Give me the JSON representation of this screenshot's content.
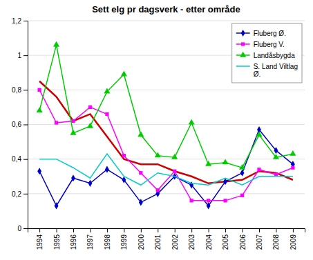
{
  "chart_data": {
    "type": "line",
    "title": "Sett elg pr dagsverk - etter område",
    "x": [
      1994,
      1995,
      1996,
      1997,
      1998,
      1999,
      2000,
      2001,
      2002,
      2003,
      2004,
      2005,
      2006,
      2007,
      2008,
      2009
    ],
    "series": [
      {
        "color": "#CC0000",
        "values": [
          0.85,
          0.76,
          0.62,
          0.66,
          0.53,
          0.4,
          0.37,
          0.37,
          0.33,
          0.3,
          0.26,
          0.27,
          0.28,
          0.33,
          0.32,
          0.28
        ]
      },
      {
        "name": "Fluberg Ø.",
        "color": "#0000CC",
        "marker": "diamond",
        "values": [
          0.33,
          0.13,
          0.29,
          0.26,
          0.34,
          0.28,
          0.15,
          0.2,
          0.3,
          0.25,
          0.13,
          0.27,
          0.32,
          0.57,
          0.45,
          0.37
        ]
      },
      {
        "name": "Fluberg V.",
        "color": "#FF00FF",
        "marker": "square",
        "values": [
          0.8,
          0.61,
          0.62,
          0.7,
          0.66,
          0.42,
          0.32,
          0.22,
          0.33,
          0.16,
          0.16,
          0.16,
          0.19,
          0.34,
          0.31,
          0.35
        ]
      },
      {
        "name": "Landåsbygda",
        "color": "#00CC00",
        "marker": "triangle",
        "values": [
          0.68,
          1.06,
          0.55,
          0.59,
          0.79,
          0.89,
          0.54,
          0.42,
          0.41,
          0.61,
          0.37,
          0.38,
          0.35,
          0.54,
          0.41,
          0.43
        ]
      },
      {
        "name": "S. Land Viltlag\nØ.",
        "color": "#00CCCC",
        "values": [
          0.4,
          0.4,
          0.35,
          0.29,
          0.43,
          0.3,
          0.25,
          0.32,
          0.3,
          0.26,
          0.25,
          0.29,
          0.25,
          0.3,
          0.3,
          0.3
        ]
      }
    ],
    "xlim": [
      1993.3,
      2009.7
    ],
    "xticks": [
      1994,
      1995,
      1996,
      1997,
      1998,
      1999,
      2000,
      2001,
      2002,
      2003,
      2004,
      2005,
      2006,
      2007,
      2008,
      2009
    ],
    "ylim": [
      0,
      1.2
    ],
    "yticks": [
      0,
      {
        "value": 0.2,
        "label": "0,2"
      },
      {
        "value": 0.4,
        "label": "0,4"
      },
      {
        "value": 0.6,
        "label": "0,6"
      },
      {
        "value": 0.8,
        "label": "0,8"
      },
      1,
      {
        "value": 1.2,
        "label": "1,2"
      }
    ],
    "grid": true,
    "legend": "upper right"
  }
}
